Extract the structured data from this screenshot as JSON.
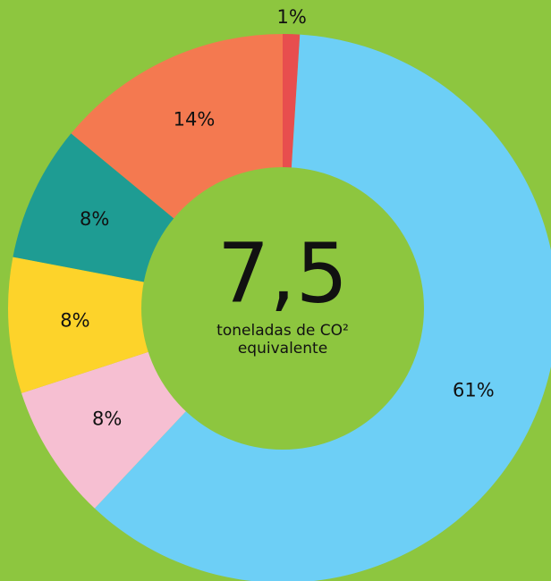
{
  "chart_data": {
    "type": "pie",
    "center_value": "7,5",
    "center_label": "toneladas de CO²",
    "center_label_2": "equivalente",
    "categories": [
      null,
      null,
      null,
      null,
      null,
      null
    ],
    "values": [
      1,
      61,
      8,
      8,
      8,
      14
    ],
    "value_labels": [
      "1%",
      "61%",
      "8%",
      "8%",
      "8%",
      "14%"
    ],
    "colors": [
      "#e84e4e",
      "#6dcff6",
      "#f6bfd2",
      "#fdd32a",
      "#1e9c93",
      "#f47950"
    ]
  }
}
